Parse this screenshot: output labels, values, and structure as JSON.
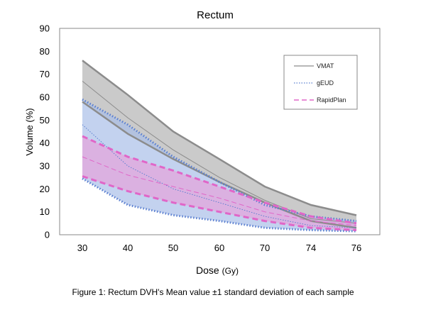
{
  "chart_data": {
    "type": "area",
    "title": "Rectum",
    "xlabel_main": "Dose",
    "xlabel_unit": "(Gy)",
    "ylabel": "Volume (%)",
    "categories": [
      "30",
      "40",
      "50",
      "60",
      "70",
      "74",
      "76"
    ],
    "ylim": [
      0,
      90
    ],
    "yticks": [
      0,
      10,
      20,
      30,
      40,
      50,
      60,
      70,
      80,
      90
    ],
    "grid": false,
    "legend_position": "top-right",
    "series": [
      {
        "name": "VMAT",
        "color": "#8c8c8c",
        "band_color": "#b3b3b3",
        "style": "solid",
        "mean": [
          67,
          51,
          37,
          25,
          15,
          7,
          5
        ],
        "upper": [
          76,
          61,
          45,
          33,
          21,
          13,
          8.5
        ],
        "lower": [
          58,
          44,
          33,
          23,
          14,
          6,
          3
        ]
      },
      {
        "name": "gEUD",
        "color": "#5a7fd0",
        "band_color": "#a9bfe8",
        "style": "dotted",
        "mean": [
          48,
          30,
          20,
          14,
          8,
          4,
          3
        ],
        "upper": [
          59,
          48,
          34,
          23,
          13,
          8,
          6
        ],
        "lower": [
          24.5,
          13,
          8.5,
          6,
          3,
          2,
          1.5
        ]
      },
      {
        "name": "RapidPlan",
        "color": "#e066c8",
        "band_color": "#e6a3dc",
        "style": "dashed",
        "mean": [
          34,
          26,
          21,
          16,
          10,
          6,
          4
        ],
        "upper": [
          43,
          34,
          28,
          21,
          14,
          8,
          5
        ],
        "lower": [
          25.5,
          19,
          14,
          10,
          6,
          3,
          2
        ]
      }
    ]
  },
  "caption": "Figure 1: Rectum DVH's Mean value ±1  standard deviation of each sample"
}
